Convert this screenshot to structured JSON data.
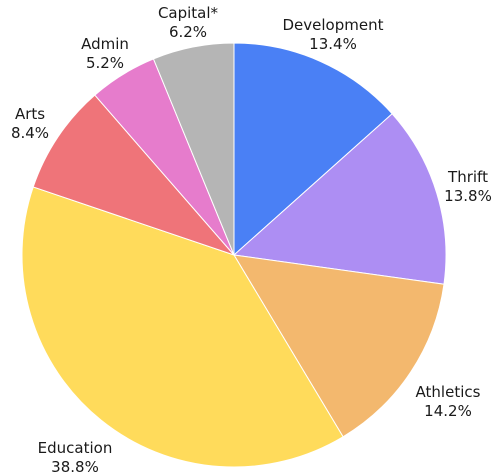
{
  "chart_data": {
    "type": "pie",
    "start": "top",
    "direction": "clockwise",
    "slices": [
      {
        "label": "Development",
        "value_label": "13.4%",
        "value": 13.4,
        "color": "#4a80f5"
      },
      {
        "label": "Thrift",
        "value_label": "13.8%",
        "value": 13.8,
        "color": "#ad8ef3"
      },
      {
        "label": "Athletics",
        "value_label": "14.2%",
        "value": 14.2,
        "color": "#f3b86e"
      },
      {
        "label": "Education",
        "value_label": "38.8%",
        "value": 38.8,
        "color": "#ffdb5b"
      },
      {
        "label": "Arts",
        "value_label": "8.4%",
        "value": 8.4,
        "color": "#ef7479"
      },
      {
        "label": "Admin",
        "value_label": "5.2%",
        "value": 5.2,
        "color": "#e67ccc"
      },
      {
        "label": "Capital*",
        "value_label": "6.2%",
        "value": 6.2,
        "color": "#b5b5b5"
      }
    ]
  }
}
